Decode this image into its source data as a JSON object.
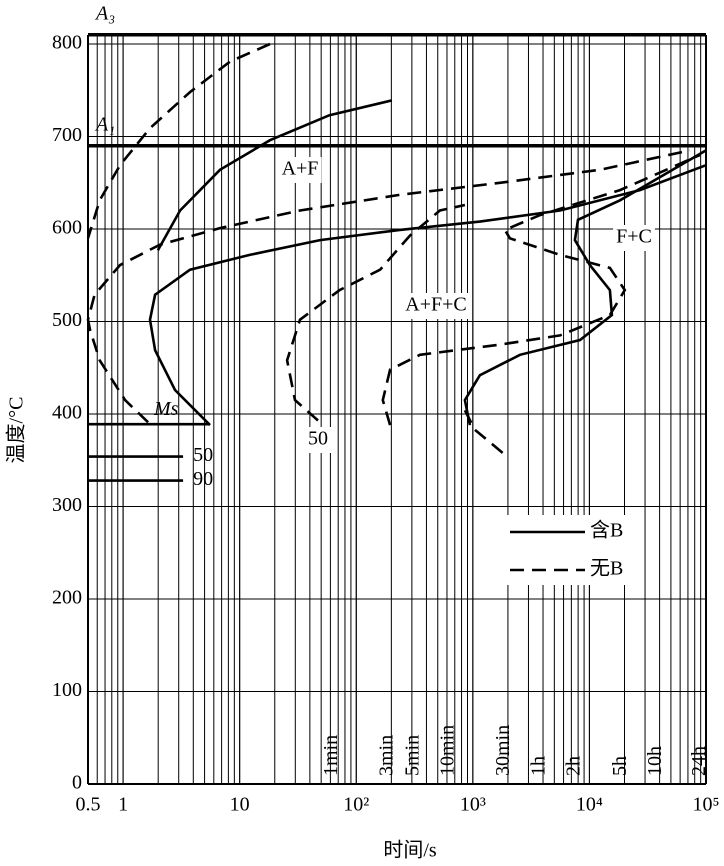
{
  "chart_data": {
    "type": "line",
    "xlabel": "时间/s",
    "ylabel": "温度/°C",
    "log_x": true,
    "grid": true,
    "minor_grid": true,
    "xlim": [
      0.5,
      100000
    ],
    "ylim": [
      0,
      800
    ],
    "xticks": [
      0.5,
      1,
      10,
      {
        "value": 100,
        "label": "10²"
      },
      {
        "value": 1000,
        "label": "10³"
      },
      {
        "value": 10000,
        "label": "10⁴"
      },
      {
        "value": 100000,
        "label": "10⁵"
      }
    ],
    "yticks": [
      0,
      100,
      200,
      300,
      400,
      500,
      600,
      700,
      800
    ],
    "time_markers": [
      {
        "value": 60,
        "label": "1min"
      },
      {
        "value": 180,
        "label": "3min"
      },
      {
        "value": 300,
        "label": "5min"
      },
      {
        "value": 600,
        "label": "10min"
      },
      {
        "value": 1800,
        "label": "30min"
      },
      {
        "value": 3600,
        "label": "1h"
      },
      {
        "value": 7200,
        "label": "2h"
      },
      {
        "value": 18000,
        "label": "5h"
      },
      {
        "value": 36000,
        "label": "10h"
      },
      {
        "value": 86400,
        "label": "24h"
      }
    ],
    "reference_lines": [
      {
        "label": "A₃",
        "value": 810
      },
      {
        "label": "A₁",
        "value": 690
      }
    ],
    "martensite_lines": [
      {
        "label": "Ms",
        "value": 389,
        "x_end": 5.56
      },
      {
        "label": "50",
        "value": 354,
        "x_end": 3.27
      },
      {
        "label": "90",
        "value": 328,
        "x_end": 3.27
      }
    ],
    "annotations": [
      "A+F",
      "A+F+C",
      "F+C",
      "50"
    ],
    "series": [
      {
        "name": "含B",
        "color": "#000000",
        "dashed": false,
        "curves": [
          {
            "x": [
              1.99,
              3.08,
              6.78,
              18.2,
              59,
              202
            ],
            "values": [
              577,
              620,
              664,
              696,
              723,
              739
            ]
          },
          {
            "x": [
              5.56,
              2.79,
              1.88,
              1.7,
              1.88,
              3.75,
              12.2,
              49,
              237,
              1150,
              5590,
              27100,
              100000
            ],
            "values": [
              388,
              426,
              469,
              502,
              529,
              556,
              572,
              588,
              599,
              608,
              620,
              642,
              669
            ]
          },
          {
            "x": [
              944,
              855,
              1150,
              2540,
              8300,
              15600,
              15000,
              10100,
              7510,
              7980,
              18300,
              100000
            ],
            "values": [
              388,
              415,
              442,
              464,
              480,
              507,
              534,
              561,
              588,
              610,
              631,
              685
            ]
          }
        ]
      },
      {
        "name": "无B",
        "color": "#000000",
        "dashed": true,
        "curves": [
          {
            "x": [
              18.2,
              8.26,
              3.75,
              1.7,
              0.94,
              0.63,
              0.5
            ],
            "values": [
              800,
              781,
              748,
              709,
              669,
              631,
              590
            ]
          },
          {
            "x": [
              1.64,
              1.04,
              0.63,
              0.52,
              0.5,
              0.57,
              0.94,
              2.07,
              6.78,
              32.9,
              237,
              1710,
              12300,
              72800
            ],
            "values": [
              391,
              415,
              458,
              491,
              502,
              529,
              561,
              583,
              601,
              620,
              637,
              650,
              664,
              685
            ]
          },
          {
            "x": [
              47,
              29.8,
              25.5,
              32.9,
              72,
              160,
              289,
              522,
              855
            ],
            "values": [
              393,
              415,
              458,
              502,
              534,
              556,
              593,
              620,
              626
            ]
          },
          {
            "x": [
              195,
              169,
              195,
              352,
              1710,
              5590,
              15000,
              20100,
              15000,
              5590,
              2080,
              1880,
              3770,
              18300,
              88600
            ],
            "values": [
              388,
              415,
              448,
              464,
              475,
              485,
              507,
              534,
              558,
              572,
              590,
              599,
              615,
              642,
              680
            ]
          },
          {
            "x": [
              855,
              1040,
              1880
            ],
            "values": [
              404,
              383,
              356
            ]
          }
        ]
      }
    ]
  }
}
